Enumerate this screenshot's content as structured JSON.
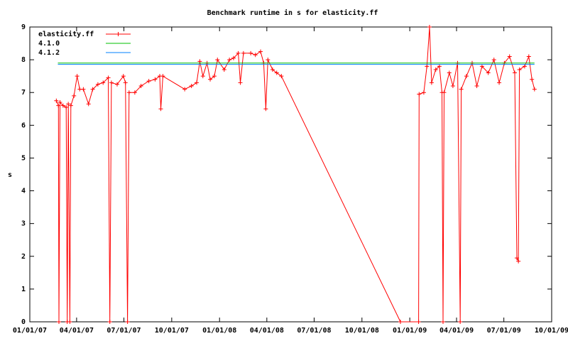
{
  "chart_data": {
    "type": "line",
    "title": "Benchmark runtime in s for elasticity.ff",
    "y_label": "s",
    "xlim": [
      "2007-01-01",
      "2009-10-01"
    ],
    "xticks": [
      {
        "value": "2007-01-01",
        "label": "01/01/07"
      },
      {
        "value": "2007-04-01",
        "label": "04/01/07"
      },
      {
        "value": "2007-07-01",
        "label": "07/01/07"
      },
      {
        "value": "2007-10-01",
        "label": "10/01/07"
      },
      {
        "value": "2008-01-01",
        "label": "01/01/08"
      },
      {
        "value": "2008-04-01",
        "label": "04/01/08"
      },
      {
        "value": "2008-07-01",
        "label": "07/01/08"
      },
      {
        "value": "2008-10-01",
        "label": "10/01/08"
      },
      {
        "value": "2009-01-01",
        "label": "01/01/09"
      },
      {
        "value": "2009-04-01",
        "label": "04/01/09"
      },
      {
        "value": "2009-07-01",
        "label": "07/01/09"
      },
      {
        "value": "2009-10-01",
        "label": "10/01/09"
      }
    ],
    "ylim": [
      0,
      9
    ],
    "yticks": [
      0,
      1,
      2,
      3,
      4,
      5,
      6,
      7,
      8,
      9
    ],
    "grid": false,
    "legend": "top-left",
    "series": [
      {
        "name": "elasticity.ff",
        "color": "#ff0000",
        "markers": true,
        "x": [
          "2007-02-21",
          "2007-02-25",
          "2007-02-26",
          "2007-02-28",
          "2007-03-06",
          "2007-03-12",
          "2007-03-14",
          "2007-03-16",
          "2007-03-19",
          "2007-03-21",
          "2007-03-27",
          "2007-04-02",
          "2007-04-07",
          "2007-04-14",
          "2007-04-24",
          "2007-05-02",
          "2007-05-12",
          "2007-05-22",
          "2007-06-01",
          "2007-06-04",
          "2007-06-07",
          "2007-06-18",
          "2007-06-30",
          "2007-07-04",
          "2007-07-08",
          "2007-07-11",
          "2007-07-22",
          "2007-08-03",
          "2007-08-18",
          "2007-08-30",
          "2007-09-08",
          "2007-09-10",
          "2007-09-14",
          "2007-10-26",
          "2007-11-08",
          "2007-11-18",
          "2007-11-24",
          "2007-11-30",
          "2007-12-08",
          "2007-12-14",
          "2007-12-22",
          "2007-12-28",
          "2008-01-10",
          "2008-01-20",
          "2008-01-28",
          "2008-02-06",
          "2008-02-10",
          "2008-02-16",
          "2008-03-01",
          "2008-03-10",
          "2008-03-20",
          "2008-03-26",
          "2008-03-30",
          "2008-04-03",
          "2008-04-12",
          "2008-04-20",
          "2008-04-29",
          "2008-12-14",
          "2009-01-18",
          "2009-01-19",
          "2009-01-28",
          "2009-02-03",
          "2009-02-08",
          "2009-02-12",
          "2009-02-20",
          "2009-02-27",
          "2009-03-04",
          "2009-03-06",
          "2009-03-08",
          "2009-03-18",
          "2009-03-25",
          "2009-04-03",
          "2009-04-08",
          "2009-04-10",
          "2009-04-20",
          "2009-05-01",
          "2009-05-10",
          "2009-05-20",
          "2009-06-01",
          "2009-06-12",
          "2009-06-22",
          "2009-07-02",
          "2009-07-12",
          "2009-07-22",
          "2009-07-26",
          "2009-07-29",
          "2009-07-31",
          "2009-08-10",
          "2009-08-18",
          "2009-08-24",
          "2009-08-29"
        ],
        "values": [
          6.75,
          6.6,
          0,
          6.7,
          6.6,
          6.55,
          0,
          6.65,
          0,
          6.6,
          6.9,
          7.5,
          7.1,
          7.1,
          6.65,
          7.1,
          7.25,
          7.3,
          7.45,
          0,
          7.3,
          7.25,
          7.5,
          7.3,
          0,
          7.0,
          7.0,
          7.2,
          7.35,
          7.4,
          7.5,
          6.5,
          7.5,
          7.1,
          7.2,
          7.3,
          7.95,
          7.5,
          7.9,
          7.4,
          7.5,
          8.0,
          7.7,
          8.0,
          8.05,
          8.2,
          7.3,
          8.2,
          8.2,
          8.15,
          8.25,
          7.9,
          6.5,
          8.0,
          7.7,
          7.6,
          7.5,
          0,
          0,
          6.95,
          7.0,
          7.8,
          9.0,
          7.3,
          7.7,
          7.8,
          7.0,
          0,
          7.0,
          7.6,
          7.2,
          7.9,
          0,
          7.1,
          7.5,
          7.9,
          7.2,
          7.8,
          7.6,
          8.0,
          7.3,
          7.9,
          8.1,
          7.6,
          1.95,
          1.85,
          7.7,
          7.8,
          8.1,
          7.4,
          7.1
        ]
      },
      {
        "name": "4.1.0",
        "color": "#00c000",
        "markers": false,
        "x": [
          "2007-02-24",
          "2009-08-29"
        ],
        "values": [
          7.9,
          7.9
        ]
      },
      {
        "name": "4.1.2",
        "color": "#0080ff",
        "markers": false,
        "x": [
          "2007-02-24",
          "2009-08-29"
        ],
        "values": [
          7.86,
          7.86
        ]
      }
    ]
  }
}
